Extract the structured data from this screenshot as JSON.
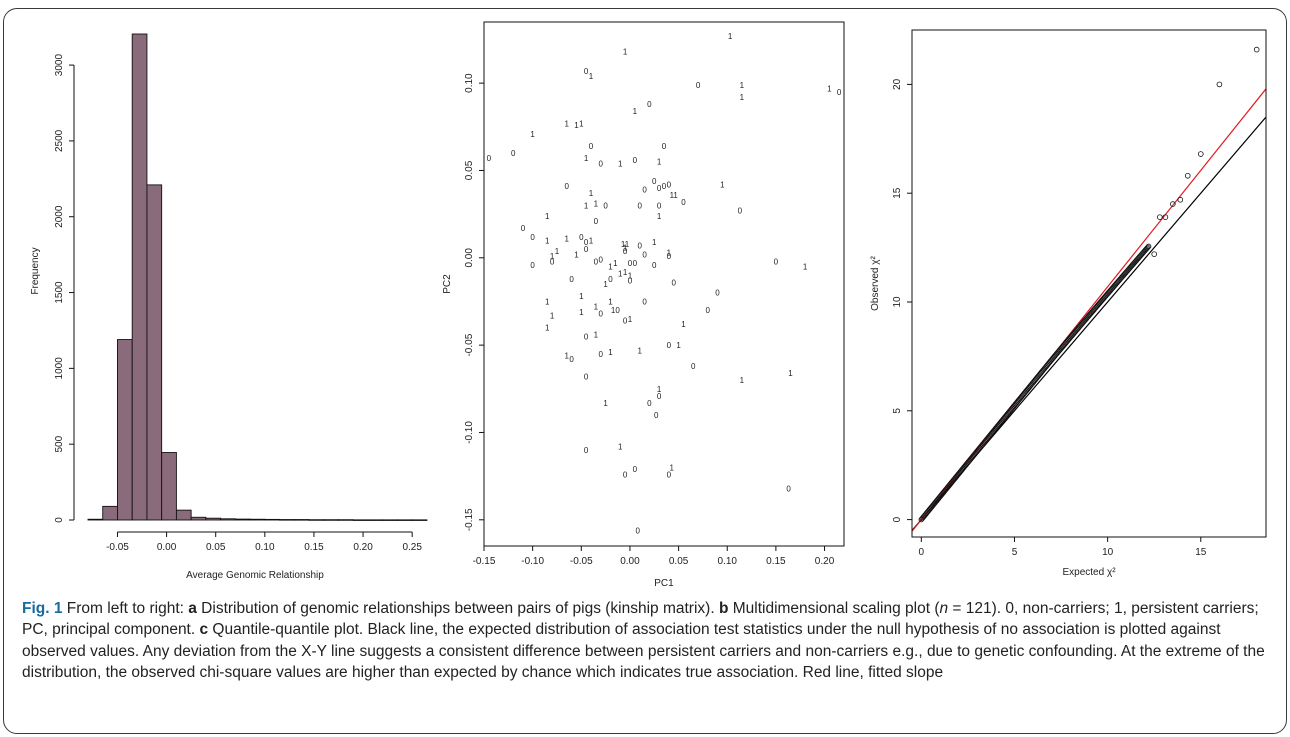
{
  "caption": {
    "fig_label": "Fig. 1",
    "text_1": " From left to right: ",
    "a_letter": "a",
    "text_2": " Distribution of genomic relationships between pairs of pigs (kinship matrix). ",
    "b_letter": "b",
    "text_3a": " Multidimensional scaling plot (",
    "n_var": "n",
    "text_3b": " = 121). 0, non-carriers; 1, persistent carriers; PC, principal component. ",
    "c_letter": "c",
    "text_4": " Quantile-quantile plot. Black line, the expected distribution of association test statistics under the null hypothesis of no association is plotted against observed values. Any deviation from the X-Y line suggests a consistent difference between persistent carriers and non-carriers e.g., due to genetic confounding. At the extreme of the distribution, the observed chi-square values are higher than expected by chance which indicates true association. Red line, fitted slope"
  },
  "chart_data": [
    {
      "type": "bar",
      "xlabel": "Average Genomic Relationship",
      "ylabel": "Frequency",
      "bin_edges": [
        -0.08,
        -0.065,
        -0.05,
        -0.035,
        -0.02,
        -0.005,
        0.01,
        0.025,
        0.04,
        0.055,
        0.07,
        0.085,
        0.1,
        0.115,
        0.13,
        0.145,
        0.16,
        0.175,
        0.19,
        0.205,
        0.22,
        0.235,
        0.25,
        0.265
      ],
      "values": [
        5,
        90,
        1190,
        3205,
        2210,
        445,
        65,
        18,
        12,
        8,
        6,
        5,
        4,
        3,
        3,
        2,
        2,
        2,
        1,
        1,
        1,
        1,
        1
      ],
      "xlim": [
        -0.08,
        0.26
      ],
      "ylim": [
        0,
        3205
      ],
      "xticks": [
        -0.05,
        0.0,
        0.05,
        0.1,
        0.15,
        0.2,
        0.25
      ],
      "xtick_labels": [
        "-0.05",
        "0.00",
        "0.05",
        "0.10",
        "0.15",
        "0.20",
        "0.25"
      ],
      "yticks": [
        0,
        500,
        1000,
        1500,
        2000,
        2500,
        3000
      ],
      "ytick_labels": [
        "0",
        "500",
        "1000",
        "1500",
        "2000",
        "2500",
        "3000"
      ],
      "bar_color": "#8a6b7b"
    },
    {
      "type": "scatter",
      "xlabel": "PC1",
      "ylabel": "PC2",
      "xlim": [
        -0.15,
        0.22
      ],
      "ylim": [
        -0.165,
        0.135
      ],
      "xticks": [
        -0.15,
        -0.1,
        -0.05,
        0.0,
        0.05,
        0.1,
        0.15,
        0.2
      ],
      "xtick_labels": [
        "-0.15",
        "-0.10",
        "-0.05",
        "0.00",
        "0.05",
        "0.10",
        "0.15",
        "0.20"
      ],
      "yticks": [
        -0.15,
        -0.1,
        -0.05,
        0.0,
        0.05,
        0.1
      ],
      "ytick_labels": [
        "-0.15",
        "-0.10",
        "-0.05",
        "0.00",
        "0.05",
        "0.10"
      ],
      "points": [
        {
          "x": 0.103,
          "y": 0.127,
          "label": "1"
        },
        {
          "x": -0.045,
          "y": 0.107,
          "label": "0"
        },
        {
          "x": -0.04,
          "y": 0.104,
          "label": "1"
        },
        {
          "x": -0.005,
          "y": 0.118,
          "label": "1"
        },
        {
          "x": 0.07,
          "y": 0.099,
          "label": "0"
        },
        {
          "x": 0.205,
          "y": 0.097,
          "label": "1"
        },
        {
          "x": 0.215,
          "y": 0.095,
          "label": "0"
        },
        {
          "x": 0.115,
          "y": 0.092,
          "label": "1"
        },
        {
          "x": 0.115,
          "y": 0.099,
          "label": "1"
        },
        {
          "x": 0.02,
          "y": 0.088,
          "label": "0"
        },
        {
          "x": 0.005,
          "y": 0.084,
          "label": "1"
        },
        {
          "x": -0.065,
          "y": 0.077,
          "label": "1"
        },
        {
          "x": -0.055,
          "y": 0.076,
          "label": "1"
        },
        {
          "x": -0.05,
          "y": 0.077,
          "label": "1"
        },
        {
          "x": -0.1,
          "y": 0.071,
          "label": "1"
        },
        {
          "x": -0.12,
          "y": 0.06,
          "label": "0"
        },
        {
          "x": -0.145,
          "y": 0.057,
          "label": "0"
        },
        {
          "x": -0.04,
          "y": 0.064,
          "label": "0"
        },
        {
          "x": -0.045,
          "y": 0.057,
          "label": "1"
        },
        {
          "x": -0.03,
          "y": 0.054,
          "label": "0"
        },
        {
          "x": -0.01,
          "y": 0.054,
          "label": "1"
        },
        {
          "x": 0.005,
          "y": 0.056,
          "label": "0"
        },
        {
          "x": 0.035,
          "y": 0.064,
          "label": "0"
        },
        {
          "x": 0.03,
          "y": 0.055,
          "label": "1"
        },
        {
          "x": -0.065,
          "y": 0.041,
          "label": "0"
        },
        {
          "x": -0.04,
          "y": 0.037,
          "label": "1"
        },
        {
          "x": -0.035,
          "y": 0.031,
          "label": "1"
        },
        {
          "x": -0.025,
          "y": 0.03,
          "label": "0"
        },
        {
          "x": 0.025,
          "y": 0.044,
          "label": "0"
        },
        {
          "x": 0.03,
          "y": 0.04,
          "label": "0"
        },
        {
          "x": 0.015,
          "y": 0.039,
          "label": "0"
        },
        {
          "x": 0.035,
          "y": 0.041,
          "label": "0"
        },
        {
          "x": 0.04,
          "y": 0.042,
          "label": "0"
        },
        {
          "x": 0.045,
          "y": 0.036,
          "label": "11"
        },
        {
          "x": 0.095,
          "y": 0.042,
          "label": "1"
        },
        {
          "x": 0.055,
          "y": 0.032,
          "label": "0"
        },
        {
          "x": 0.01,
          "y": 0.03,
          "label": "0"
        },
        {
          "x": 0.03,
          "y": 0.03,
          "label": "0"
        },
        {
          "x": 0.03,
          "y": 0.024,
          "label": "1"
        },
        {
          "x": 0.113,
          "y": 0.027,
          "label": "0"
        },
        {
          "x": -0.085,
          "y": 0.024,
          "label": "1"
        },
        {
          "x": -0.045,
          "y": 0.03,
          "label": "1"
        },
        {
          "x": -0.035,
          "y": 0.021,
          "label": "0"
        },
        {
          "x": -0.11,
          "y": 0.017,
          "label": "0"
        },
        {
          "x": -0.1,
          "y": 0.012,
          "label": "0"
        },
        {
          "x": -0.085,
          "y": 0.01,
          "label": "1"
        },
        {
          "x": -0.065,
          "y": 0.011,
          "label": "1"
        },
        {
          "x": -0.05,
          "y": 0.012,
          "label": "0"
        },
        {
          "x": -0.045,
          "y": 0.009,
          "label": "0"
        },
        {
          "x": -0.04,
          "y": 0.01,
          "label": "1"
        },
        {
          "x": -0.045,
          "y": 0.005,
          "label": "0"
        },
        {
          "x": -0.075,
          "y": 0.004,
          "label": "1"
        },
        {
          "x": -0.08,
          "y": 0.001,
          "label": "1"
        },
        {
          "x": -0.08,
          "y": -0.002,
          "label": "0"
        },
        {
          "x": -0.055,
          "y": 0.002,
          "label": "1"
        },
        {
          "x": -0.005,
          "y": 0.008,
          "label": "11"
        },
        {
          "x": -0.005,
          "y": 0.006,
          "label": "1"
        },
        {
          "x": -0.005,
          "y": 0.004,
          "label": "0"
        },
        {
          "x": 0.01,
          "y": 0.007,
          "label": "0"
        },
        {
          "x": 0.015,
          "y": 0.002,
          "label": "0"
        },
        {
          "x": 0.025,
          "y": 0.009,
          "label": "1"
        },
        {
          "x": 0.04,
          "y": 0.003,
          "label": "1"
        },
        {
          "x": 0.04,
          "y": 0.001,
          "label": "0"
        },
        {
          "x": -0.1,
          "y": -0.004,
          "label": "0"
        },
        {
          "x": -0.035,
          "y": -0.002,
          "label": "0"
        },
        {
          "x": -0.03,
          "y": -0.001,
          "label": "0"
        },
        {
          "x": -0.015,
          "y": -0.003,
          "label": "1"
        },
        {
          "x": -0.02,
          "y": -0.005,
          "label": "1"
        },
        {
          "x": 0.0,
          "y": -0.003,
          "label": "0"
        },
        {
          "x": 0.005,
          "y": -0.003,
          "label": "0"
        },
        {
          "x": 0.025,
          "y": -0.004,
          "label": "0"
        },
        {
          "x": -0.005,
          "y": -0.008,
          "label": "1"
        },
        {
          "x": -0.01,
          "y": -0.009,
          "label": "1"
        },
        {
          "x": 0.0,
          "y": -0.01,
          "label": "1"
        },
        {
          "x": -0.02,
          "y": -0.012,
          "label": "0"
        },
        {
          "x": -0.025,
          "y": -0.015,
          "label": "1"
        },
        {
          "x": 0.0,
          "y": -0.013,
          "label": "0"
        },
        {
          "x": 0.15,
          "y": -0.002,
          "label": "0"
        },
        {
          "x": 0.18,
          "y": -0.005,
          "label": "1"
        },
        {
          "x": -0.06,
          "y": -0.012,
          "label": "0"
        },
        {
          "x": 0.045,
          "y": -0.014,
          "label": "0"
        },
        {
          "x": 0.09,
          "y": -0.02,
          "label": "0"
        },
        {
          "x": -0.05,
          "y": -0.022,
          "label": "1"
        },
        {
          "x": 0.015,
          "y": -0.025,
          "label": "0"
        },
        {
          "x": 0.08,
          "y": -0.03,
          "label": "0"
        },
        {
          "x": -0.085,
          "y": -0.025,
          "label": "1"
        },
        {
          "x": -0.08,
          "y": -0.033,
          "label": "1"
        },
        {
          "x": -0.085,
          "y": -0.04,
          "label": "1"
        },
        {
          "x": -0.05,
          "y": -0.031,
          "label": "1"
        },
        {
          "x": -0.035,
          "y": -0.028,
          "label": "1"
        },
        {
          "x": -0.03,
          "y": -0.032,
          "label": "0"
        },
        {
          "x": -0.02,
          "y": -0.025,
          "label": "1"
        },
        {
          "x": -0.015,
          "y": -0.03,
          "label": "10"
        },
        {
          "x": -0.005,
          "y": -0.036,
          "label": "0"
        },
        {
          "x": 0.0,
          "y": -0.035,
          "label": "1"
        },
        {
          "x": -0.045,
          "y": -0.045,
          "label": "0"
        },
        {
          "x": -0.035,
          "y": -0.044,
          "label": "1"
        },
        {
          "x": 0.055,
          "y": -0.038,
          "label": "1"
        },
        {
          "x": -0.065,
          "y": -0.056,
          "label": "1"
        },
        {
          "x": -0.06,
          "y": -0.058,
          "label": "0"
        },
        {
          "x": -0.03,
          "y": -0.055,
          "label": "0"
        },
        {
          "x": -0.02,
          "y": -0.054,
          "label": "1"
        },
        {
          "x": 0.01,
          "y": -0.053,
          "label": "1"
        },
        {
          "x": 0.04,
          "y": -0.05,
          "label": "0"
        },
        {
          "x": 0.05,
          "y": -0.05,
          "label": "1"
        },
        {
          "x": 0.065,
          "y": -0.062,
          "label": "0"
        },
        {
          "x": -0.045,
          "y": -0.068,
          "label": "0"
        },
        {
          "x": 0.115,
          "y": -0.07,
          "label": "1"
        },
        {
          "x": 0.165,
          "y": -0.066,
          "label": "1"
        },
        {
          "x": 0.03,
          "y": -0.075,
          "label": "1"
        },
        {
          "x": 0.03,
          "y": -0.079,
          "label": "0"
        },
        {
          "x": -0.025,
          "y": -0.083,
          "label": "1"
        },
        {
          "x": 0.02,
          "y": -0.083,
          "label": "0"
        },
        {
          "x": 0.027,
          "y": -0.09,
          "label": "0"
        },
        {
          "x": -0.045,
          "y": -0.11,
          "label": "0"
        },
        {
          "x": -0.01,
          "y": -0.108,
          "label": "1"
        },
        {
          "x": 0.005,
          "y": -0.121,
          "label": "0"
        },
        {
          "x": 0.043,
          "y": -0.12,
          "label": "1"
        },
        {
          "x": -0.005,
          "y": -0.124,
          "label": "0"
        },
        {
          "x": 0.04,
          "y": -0.124,
          "label": "0"
        },
        {
          "x": 0.163,
          "y": -0.132,
          "label": "0"
        },
        {
          "x": 0.008,
          "y": -0.156,
          "label": "0"
        }
      ]
    },
    {
      "type": "scatter",
      "xlabel": "Expected χ²",
      "ylabel": "Observed χ²",
      "xlim": [
        -0.5,
        18.5
      ],
      "ylim": [
        -0.8,
        22.5
      ],
      "xticks": [
        0,
        5,
        10,
        15
      ],
      "xtick_labels": [
        "0",
        "5",
        "10",
        "15"
      ],
      "yticks": [
        0,
        5,
        10,
        15,
        20
      ],
      "ytick_labels": [
        "0",
        "5",
        "10",
        "15",
        "20"
      ],
      "reference_line_slope": 1.0,
      "fitted_line_slope": 1.07,
      "fitted_line_color": "#e0191f",
      "reference_line_color": "#000000",
      "extreme_points": [
        {
          "x": 12.5,
          "y": 12.2
        },
        {
          "x": 12.8,
          "y": 13.9
        },
        {
          "x": 13.1,
          "y": 13.9
        },
        {
          "x": 13.5,
          "y": 14.5
        },
        {
          "x": 13.9,
          "y": 14.7
        },
        {
          "x": 14.3,
          "y": 15.8
        },
        {
          "x": 15.0,
          "y": 16.8
        },
        {
          "x": 16.0,
          "y": 20.0
        },
        {
          "x": 18.0,
          "y": 21.6
        }
      ]
    }
  ]
}
